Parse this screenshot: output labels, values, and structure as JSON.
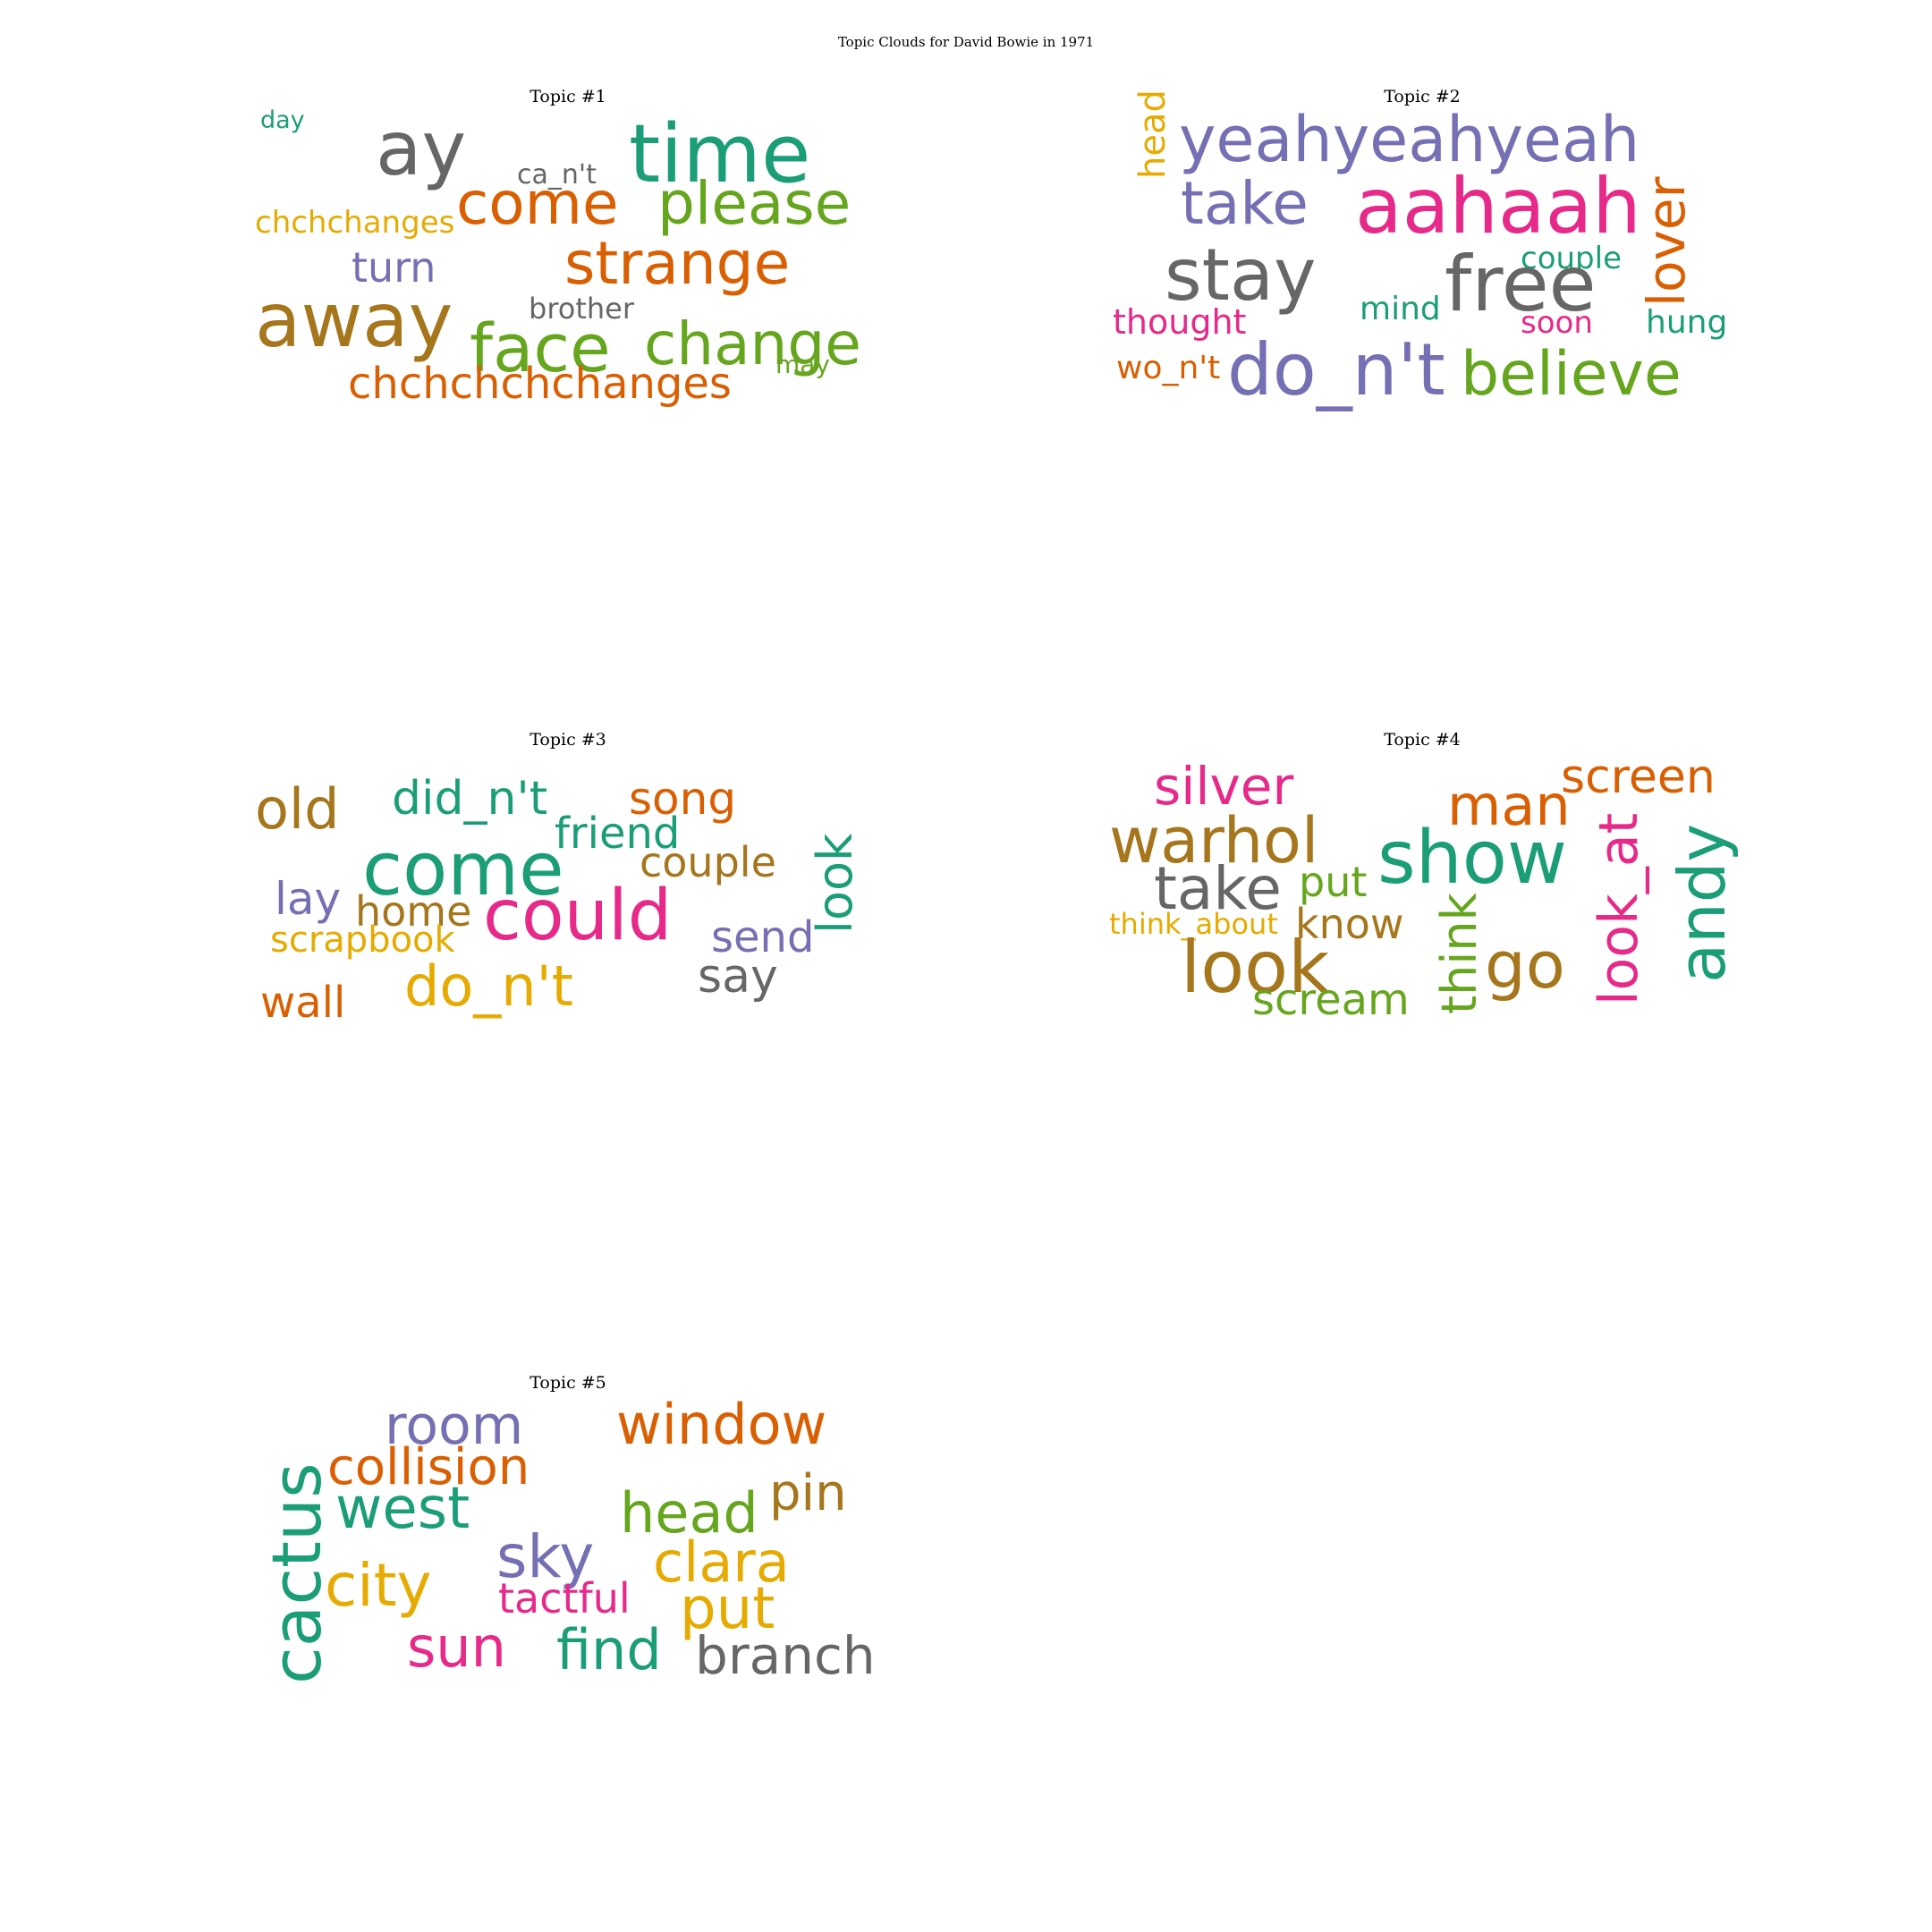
{
  "figure_title": "Topic Clouds for David Bowie in 1971",
  "palette": {
    "teal": "#1b9e77",
    "orange": "#d95f02",
    "purple": "#7570b3",
    "pink": "#e7298a",
    "green": "#66a61e",
    "yellow": "#e6ab02",
    "brown": "#a6761d",
    "gray": "#666666"
  },
  "chart_data": [
    {
      "type": "wordcloud",
      "title": "Topic #1",
      "words": [
        {
          "text": "day",
          "color": "teal"
        },
        {
          "text": "ay",
          "color": "gray"
        },
        {
          "text": "time",
          "color": "teal"
        },
        {
          "text": "ca_n't",
          "color": "gray"
        },
        {
          "text": "chchchanges",
          "color": "yellow"
        },
        {
          "text": "come",
          "color": "orange"
        },
        {
          "text": "please",
          "color": "green"
        },
        {
          "text": "turn",
          "color": "purple"
        },
        {
          "text": "strange",
          "color": "orange"
        },
        {
          "text": "away",
          "color": "brown"
        },
        {
          "text": "brother",
          "color": "gray"
        },
        {
          "text": "face",
          "color": "green"
        },
        {
          "text": "change",
          "color": "green"
        },
        {
          "text": "may",
          "color": "green"
        },
        {
          "text": "chchchchchanges",
          "color": "orange"
        }
      ]
    },
    {
      "type": "wordcloud",
      "title": "Topic #2",
      "words": [
        {
          "text": "head",
          "color": "yellow"
        },
        {
          "text": "yeahyeahyeah",
          "color": "purple"
        },
        {
          "text": "lover",
          "color": "orange"
        },
        {
          "text": "take",
          "color": "purple"
        },
        {
          "text": "aahaah",
          "color": "pink"
        },
        {
          "text": "couple",
          "color": "teal"
        },
        {
          "text": "stay",
          "color": "gray"
        },
        {
          "text": "free",
          "color": "gray"
        },
        {
          "text": "mind",
          "color": "teal"
        },
        {
          "text": "thought",
          "color": "pink"
        },
        {
          "text": "soon",
          "color": "pink"
        },
        {
          "text": "hung",
          "color": "teal"
        },
        {
          "text": "wo_n't",
          "color": "orange"
        },
        {
          "text": "do_n't",
          "color": "purple"
        },
        {
          "text": "believe",
          "color": "green"
        }
      ]
    },
    {
      "type": "wordcloud",
      "title": "Topic #3",
      "words": [
        {
          "text": "old",
          "color": "brown"
        },
        {
          "text": "did_n't",
          "color": "teal"
        },
        {
          "text": "song",
          "color": "orange"
        },
        {
          "text": "friend",
          "color": "teal"
        },
        {
          "text": "look",
          "color": "teal"
        },
        {
          "text": "come",
          "color": "teal"
        },
        {
          "text": "couple",
          "color": "brown"
        },
        {
          "text": "lay",
          "color": "purple"
        },
        {
          "text": "home",
          "color": "brown"
        },
        {
          "text": "could",
          "color": "pink"
        },
        {
          "text": "send",
          "color": "purple"
        },
        {
          "text": "scrapbook",
          "color": "yellow"
        },
        {
          "text": "say",
          "color": "gray"
        },
        {
          "text": "do_n't",
          "color": "yellow"
        },
        {
          "text": "wall",
          "color": "orange"
        }
      ]
    },
    {
      "type": "wordcloud",
      "title": "Topic #4",
      "words": [
        {
          "text": "silver",
          "color": "pink"
        },
        {
          "text": "screen",
          "color": "orange"
        },
        {
          "text": "man",
          "color": "orange"
        },
        {
          "text": "warhol",
          "color": "brown"
        },
        {
          "text": "show",
          "color": "teal"
        },
        {
          "text": "look_at",
          "color": "pink"
        },
        {
          "text": "andy",
          "color": "teal"
        },
        {
          "text": "take",
          "color": "gray"
        },
        {
          "text": "put",
          "color": "green"
        },
        {
          "text": "think_about",
          "color": "yellow"
        },
        {
          "text": "know",
          "color": "brown"
        },
        {
          "text": "think",
          "color": "green"
        },
        {
          "text": "go",
          "color": "brown"
        },
        {
          "text": "look",
          "color": "brown"
        },
        {
          "text": "scream",
          "color": "green"
        }
      ]
    },
    {
      "type": "wordcloud",
      "title": "Topic #5",
      "words": [
        {
          "text": "room",
          "color": "purple"
        },
        {
          "text": "window",
          "color": "orange"
        },
        {
          "text": "cactus",
          "color": "teal"
        },
        {
          "text": "collision",
          "color": "orange"
        },
        {
          "text": "pin",
          "color": "brown"
        },
        {
          "text": "west",
          "color": "teal"
        },
        {
          "text": "head",
          "color": "green"
        },
        {
          "text": "sky",
          "color": "purple"
        },
        {
          "text": "clara",
          "color": "yellow"
        },
        {
          "text": "city",
          "color": "yellow"
        },
        {
          "text": "tactful",
          "color": "pink"
        },
        {
          "text": "put",
          "color": "yellow"
        },
        {
          "text": "sun",
          "color": "pink"
        },
        {
          "text": "find",
          "color": "teal"
        },
        {
          "text": "branch",
          "color": "gray"
        }
      ]
    }
  ]
}
